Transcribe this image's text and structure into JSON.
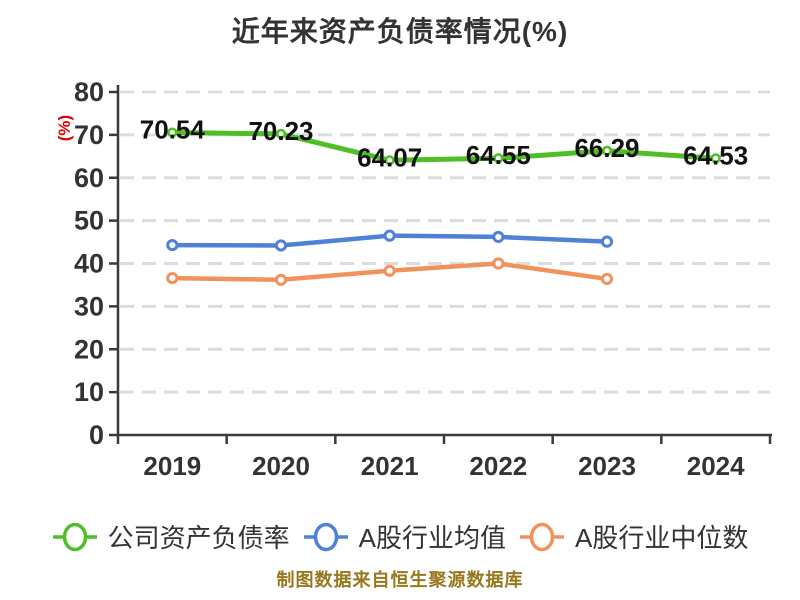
{
  "title": "近年来资产负债率情况(%)",
  "y_axis_unit": "(%)",
  "footer_note": "制图数据来自恒生聚源数据库",
  "palette": {
    "background": "#ffffff",
    "axis": "#3a3a3a",
    "grid": "#dcdcdc",
    "tick_text": "#333333",
    "title_text": "#333333",
    "unit_label": "#e80000",
    "data_label": "#111111",
    "footer_text": "#97781e"
  },
  "chart_data": {
    "type": "line",
    "title": "近年来资产负债率情况(%)",
    "xlabel": "",
    "ylabel": "(%)",
    "categories": [
      "2019",
      "2020",
      "2021",
      "2022",
      "2023",
      "2024"
    ],
    "ylim": [
      0,
      80
    ],
    "yticks": [
      0,
      10,
      20,
      30,
      40,
      50,
      60,
      70,
      80
    ],
    "grid": "horizontal-dashed",
    "legend_position": "bottom",
    "series": [
      {
        "name": "公司资产负债率",
        "color": "#4fbe27",
        "values": [
          70.54,
          70.23,
          64.07,
          64.55,
          66.29,
          64.53
        ],
        "point_labels": [
          "70.54",
          "70.23",
          "64.07",
          "64.55",
          "66.29",
          "64.53"
        ]
      },
      {
        "name": "A股行业均值",
        "color": "#5081d9",
        "values": [
          44.3,
          44.2,
          46.5,
          46.2,
          45.1
        ],
        "point_labels": []
      },
      {
        "name": "A股行业中位数",
        "color": "#f2915c",
        "values": [
          36.6,
          36.2,
          38.3,
          40.0,
          36.4
        ],
        "point_labels": []
      }
    ]
  }
}
